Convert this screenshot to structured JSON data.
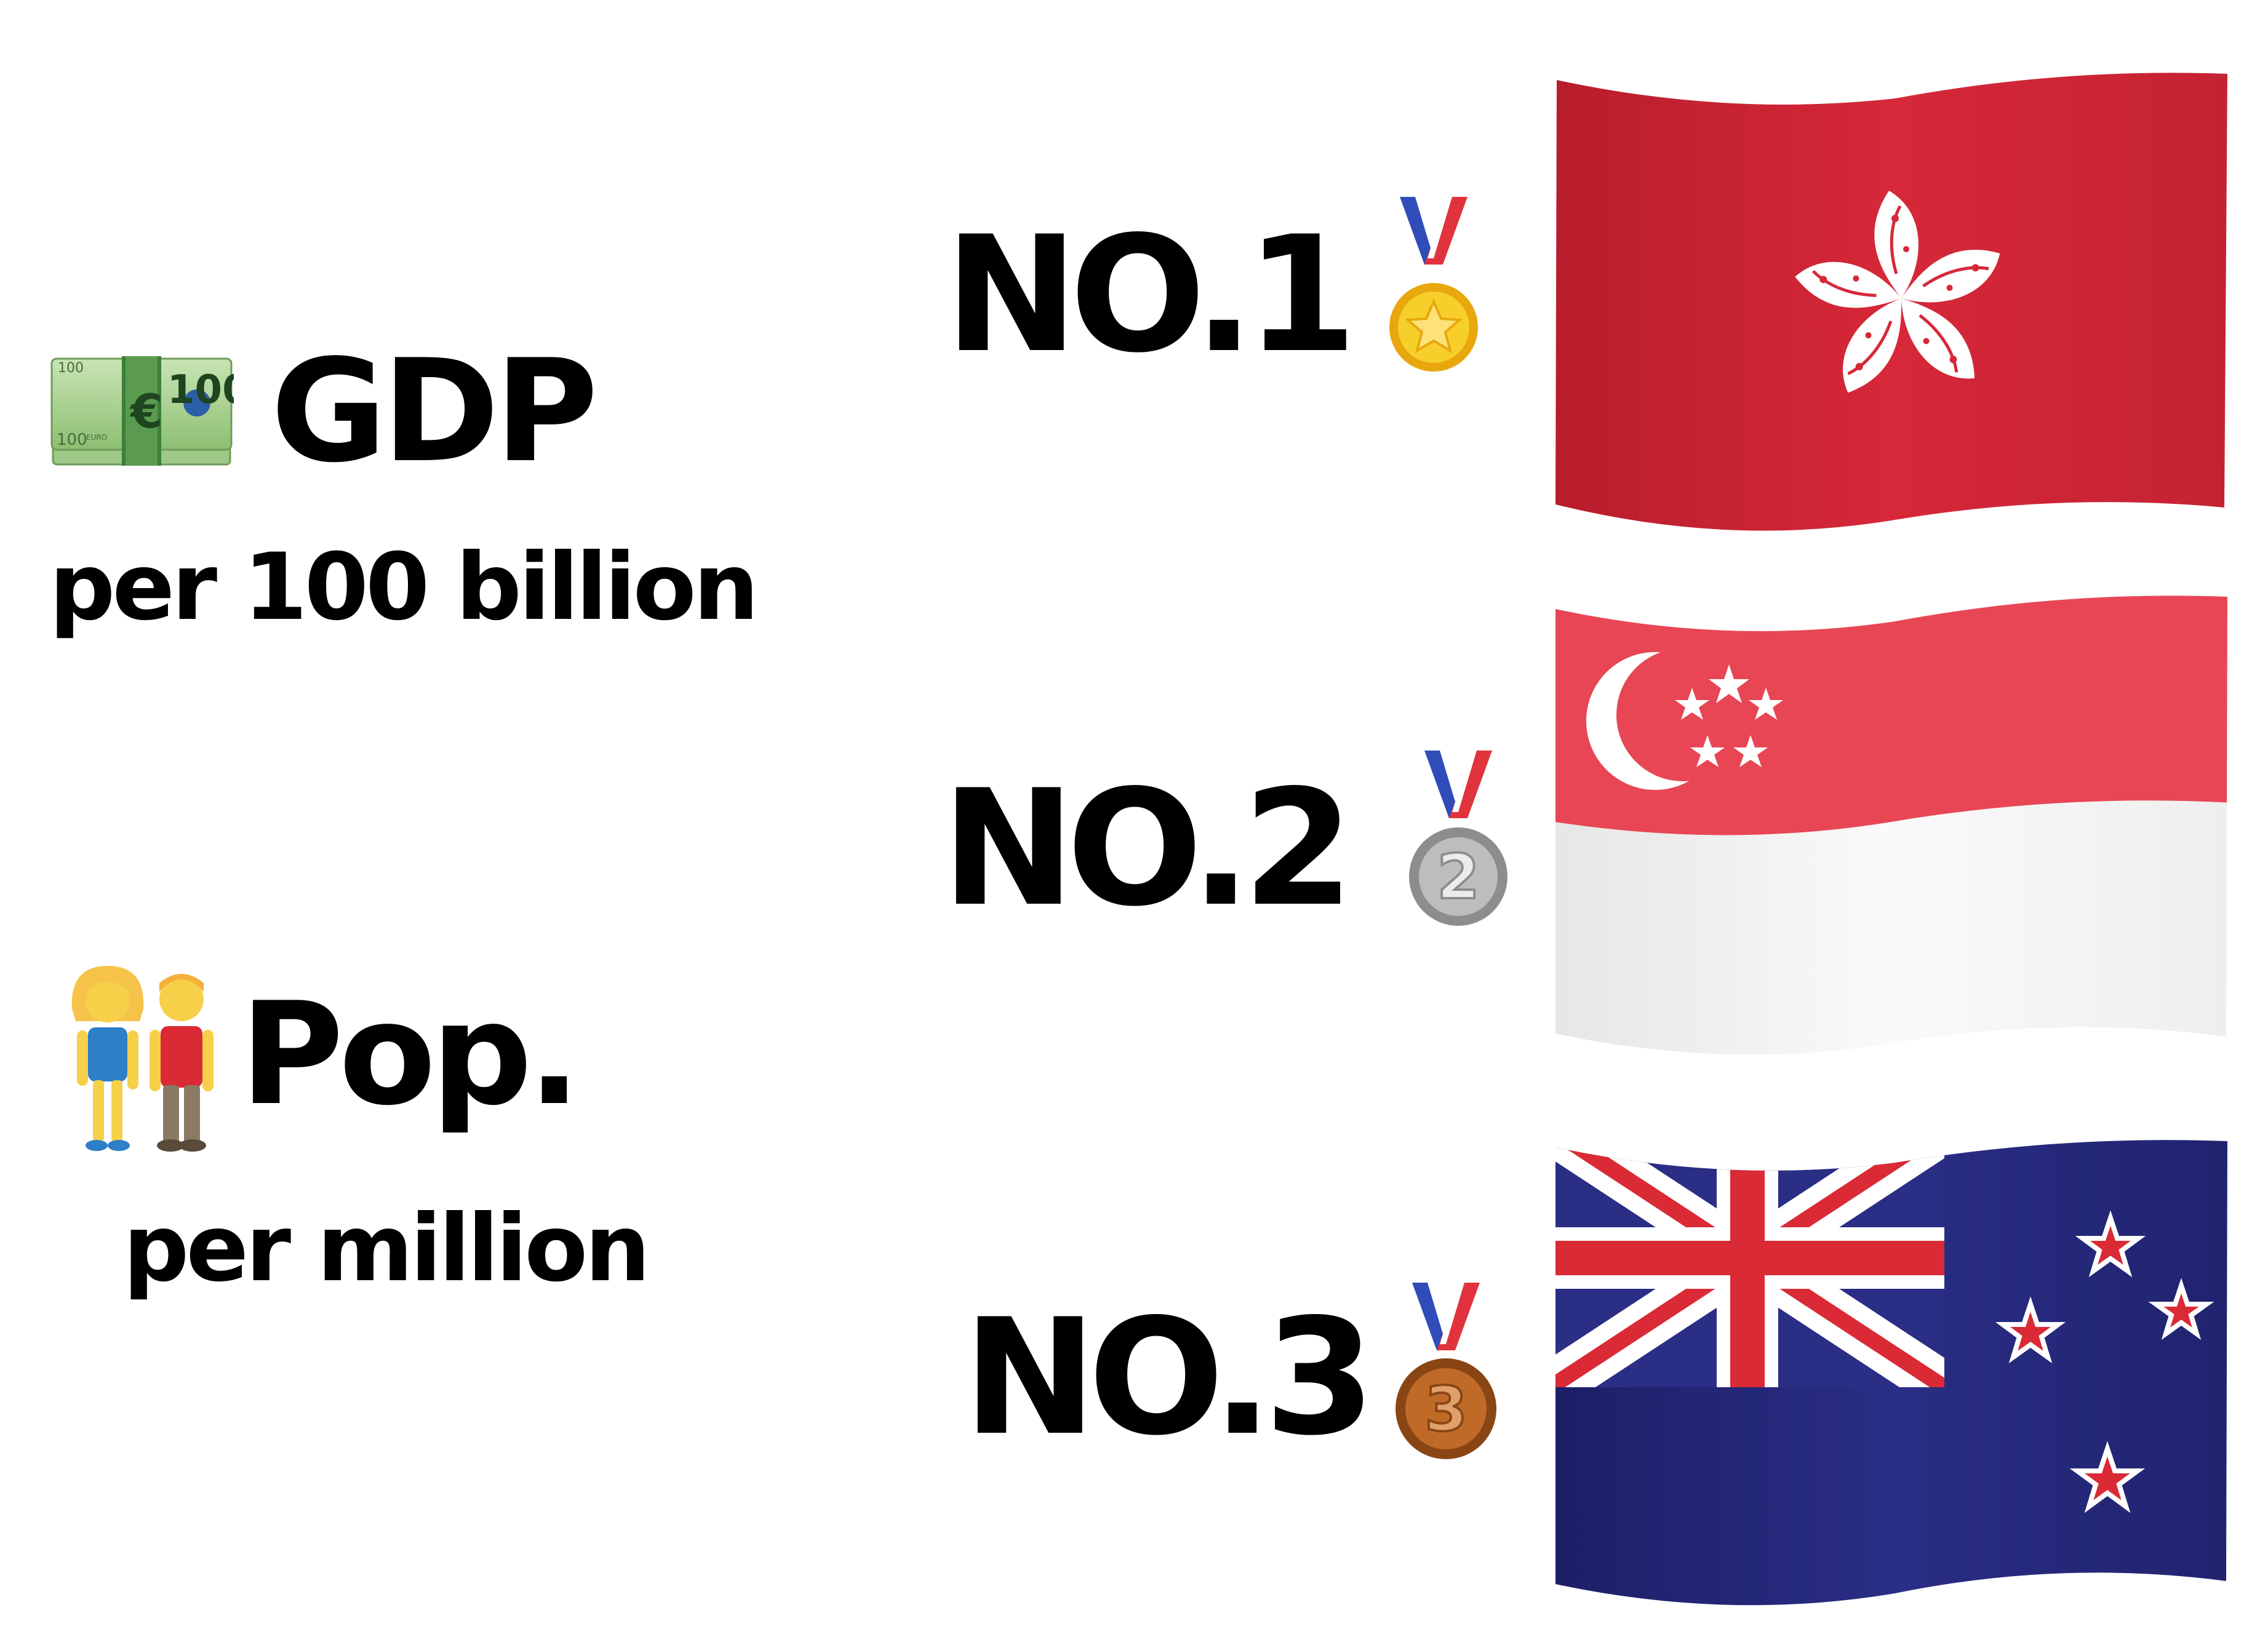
{
  "metrics": [
    {
      "icon": "euro-banknote-icon",
      "title": "GDP",
      "subtitle": "per 100 billion"
    },
    {
      "icon": "couple-holding-hands-icon",
      "title": "Pop.",
      "subtitle": "per million"
    }
  ],
  "ranking": [
    {
      "label": "NO.1",
      "medal": "gold-medal-icon",
      "medal_number": "",
      "flag": "hong-kong-flag-icon"
    },
    {
      "label": "NO.2",
      "medal": "silver-medal-icon",
      "medal_number": "2",
      "flag": "singapore-flag-icon"
    },
    {
      "label": "NO.3",
      "medal": "bronze-medal-icon",
      "medal_number": "3",
      "flag": "new-zealand-flag-icon"
    }
  ],
  "banknote_text": {
    "value": "100",
    "currency": "€",
    "small": "EURO"
  },
  "colors": {
    "hk_red": "#d62839",
    "sg_red": "#e84654",
    "nz_blue": "#232674",
    "nz_red": "#d92a35",
    "gold": "#f2c318",
    "silver": "#9e9e9e",
    "bronze": "#b25e22",
    "ribbon_blue": "#2f4cb8",
    "ribbon_red": "#e0333d"
  }
}
